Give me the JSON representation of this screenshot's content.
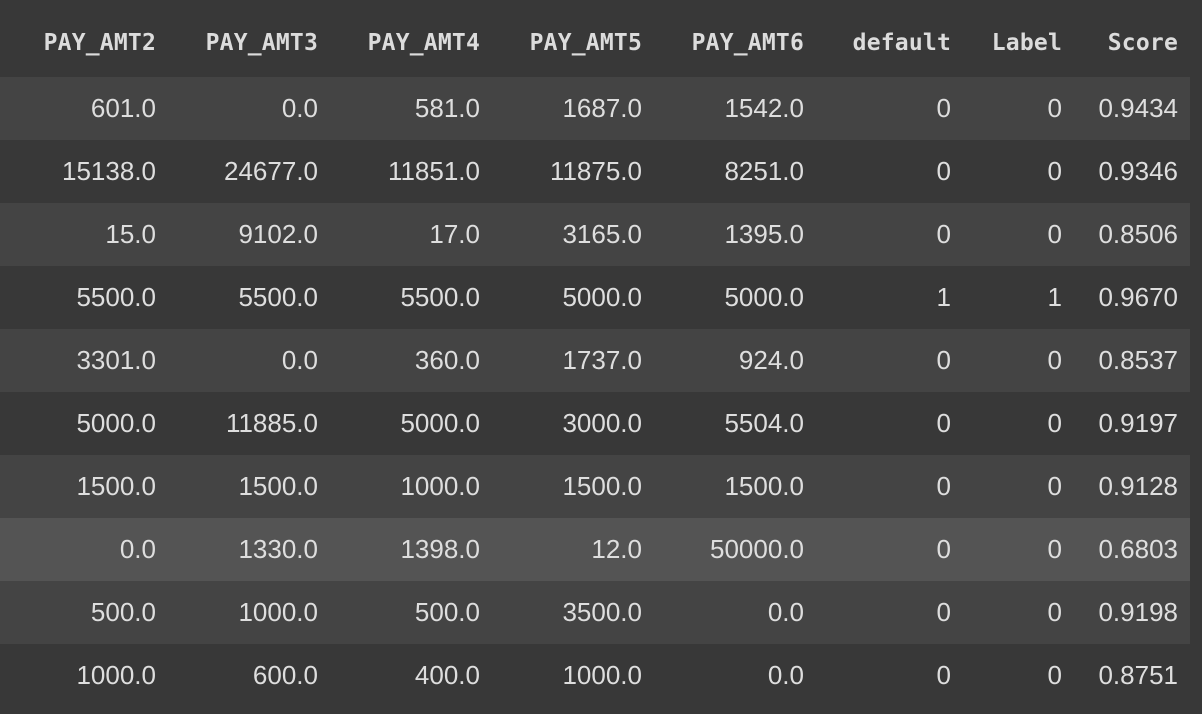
{
  "columns": [
    "PAY_AMT2",
    "PAY_AMT3",
    "PAY_AMT4",
    "PAY_AMT5",
    "PAY_AMT6",
    "default",
    "Label",
    "Score"
  ],
  "rows": [
    [
      "601.0",
      "0.0",
      "581.0",
      "1687.0",
      "1542.0",
      "0",
      "0",
      "0.9434"
    ],
    [
      "15138.0",
      "24677.0",
      "11851.0",
      "11875.0",
      "8251.0",
      "0",
      "0",
      "0.9346"
    ],
    [
      "15.0",
      "9102.0",
      "17.0",
      "3165.0",
      "1395.0",
      "0",
      "0",
      "0.8506"
    ],
    [
      "5500.0",
      "5500.0",
      "5500.0",
      "5000.0",
      "5000.0",
      "1",
      "1",
      "0.9670"
    ],
    [
      "3301.0",
      "0.0",
      "360.0",
      "1737.0",
      "924.0",
      "0",
      "0",
      "0.8537"
    ],
    [
      "5000.0",
      "11885.0",
      "5000.0",
      "3000.0",
      "5504.0",
      "0",
      "0",
      "0.9197"
    ],
    [
      "1500.0",
      "1500.0",
      "1000.0",
      "1500.0",
      "1500.0",
      "0",
      "0",
      "0.9128"
    ],
    [
      "0.0",
      "1330.0",
      "1398.0",
      "12.0",
      "50000.0",
      "0",
      "0",
      "0.6803"
    ],
    [
      "500.0",
      "1000.0",
      "500.0",
      "3500.0",
      "0.0",
      "0",
      "0",
      "0.9198"
    ],
    [
      "1000.0",
      "600.0",
      "400.0",
      "1000.0",
      "0.0",
      "0",
      "0",
      "0.8751"
    ]
  ],
  "highlighted_row_index": 7,
  "colors": {
    "background": "#383838",
    "row_odd": "#444444",
    "row_even": "#383838",
    "row_hover": "#545454",
    "text": "#dedede"
  }
}
